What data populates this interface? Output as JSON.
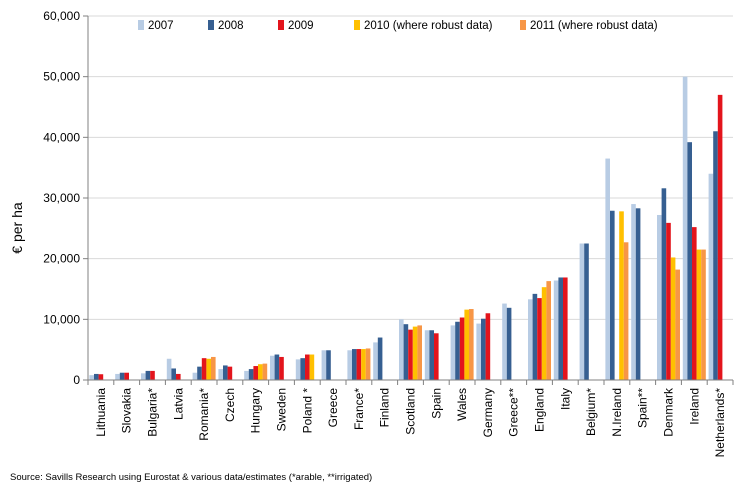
{
  "chart_data": {
    "type": "bar",
    "title": "",
    "xlabel": "",
    "ylabel": "€ per ha",
    "ylim": [
      0,
      60000
    ],
    "yticks": [
      0,
      10000,
      20000,
      30000,
      40000,
      50000,
      60000
    ],
    "ytick_labels": [
      "0",
      "10,000",
      "20,000",
      "30,000",
      "40,000",
      "50,000",
      "60,000"
    ],
    "grid": true,
    "legend_position": "top",
    "categories": [
      "Lithuania",
      "Slovakia",
      "Bulgaria*",
      "Latvia",
      "Romania*",
      "Czech",
      "Hungary",
      "Sweden",
      "Poland *",
      "Greece",
      "France*",
      "Finland",
      "Scotland",
      "Spain",
      "Wales",
      "Germany",
      "Greece**",
      "England",
      "Italy",
      "Belgium*",
      "N.Ireland",
      "Spain**",
      "Denmark",
      "Ireland",
      "Netherlands*"
    ],
    "series": [
      {
        "name": "2007",
        "color": "#b8cce4",
        "values": [
          800,
          1000,
          1100,
          3500,
          1200,
          1800,
          1500,
          4000,
          3400,
          4900,
          4900,
          6200,
          10000,
          8200,
          9000,
          9300,
          12600,
          13300,
          16400,
          22500,
          36500,
          29000,
          27200,
          50000,
          34000
        ]
      },
      {
        "name": "2008",
        "color": "#365f91",
        "values": [
          1000,
          1200,
          1500,
          1900,
          2200,
          2400,
          1800,
          4200,
          3600,
          4900,
          5100,
          7000,
          9200,
          8200,
          9600,
          10100,
          11900,
          14200,
          16900,
          22500,
          27900,
          28300,
          31600,
          39200,
          41000
        ]
      },
      {
        "name": "2009",
        "color": "#e3141c",
        "values": [
          950,
          1200,
          1500,
          1000,
          3600,
          2200,
          2300,
          3800,
          4200,
          null,
          5100,
          null,
          8300,
          7700,
          10300,
          11000,
          null,
          13500,
          16900,
          null,
          null,
          null,
          25900,
          25200,
          47000
        ]
      },
      {
        "name": "2010 (where robust data)",
        "color": "#ffc000",
        "values": [
          null,
          null,
          null,
          null,
          3500,
          null,
          2600,
          null,
          4200,
          null,
          5100,
          null,
          8800,
          null,
          11600,
          null,
          null,
          15300,
          null,
          null,
          27800,
          null,
          20200,
          21500,
          null
        ]
      },
      {
        "name": "2011 (where robust data)",
        "color": "#f79646",
        "values": [
          null,
          null,
          null,
          null,
          3800,
          null,
          2700,
          null,
          null,
          null,
          5200,
          null,
          9000,
          null,
          11700,
          null,
          null,
          16300,
          null,
          null,
          22700,
          null,
          18200,
          21500,
          null
        ]
      }
    ]
  },
  "source_note": "Source: Savills Research using  Eurostat & various data/estimates (*arable, **irrigated)"
}
